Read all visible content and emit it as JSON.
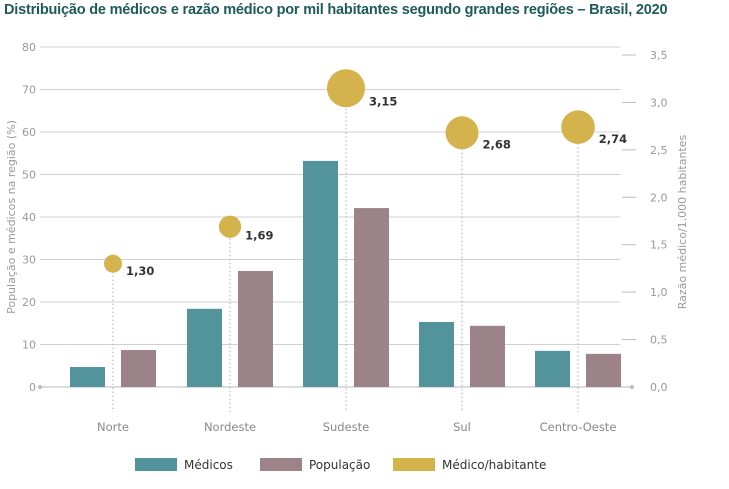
{
  "chart_data": {
    "type": "bar",
    "title": "Distribuição de médicos e razão médico por mil habitantes segundo grandes regiões – Brasil, 2020",
    "categories": [
      "Norte",
      "Nordeste",
      "Sudeste",
      "Sul",
      "Centro-Oeste"
    ],
    "series": [
      {
        "name": "Médicos",
        "type": "bar",
        "axis": "left",
        "color": "#52939c",
        "values": [
          4.7,
          18.4,
          53.2,
          15.3,
          8.5
        ]
      },
      {
        "name": "População",
        "type": "bar",
        "axis": "left",
        "color": "#9c8389",
        "values": [
          8.7,
          27.3,
          42.1,
          14.4,
          7.8
        ]
      },
      {
        "name": "Médico/habitante",
        "type": "bubble",
        "axis": "right",
        "color": "#d4b24c",
        "values": [
          1.3,
          1.69,
          3.15,
          2.68,
          2.74
        ],
        "labels": [
          "1,30",
          "1,69",
          "3,15",
          "2,68",
          "2,74"
        ]
      }
    ],
    "ylabel": "População e médicos na região (%)",
    "ylim": [
      0,
      80
    ],
    "yticks": [
      "0",
      "10",
      "20",
      "30",
      "40",
      "50",
      "60",
      "70",
      "80"
    ],
    "y2label": "Razão médico/1.000 habitantes",
    "y2lim": [
      0,
      3.5
    ],
    "y2ticks": [
      "0,0",
      "0,5",
      "1,0",
      "1,5",
      "2,0",
      "2,5",
      "3,0",
      "3,5"
    ],
    "grid": true,
    "legend_position": "bottom"
  }
}
